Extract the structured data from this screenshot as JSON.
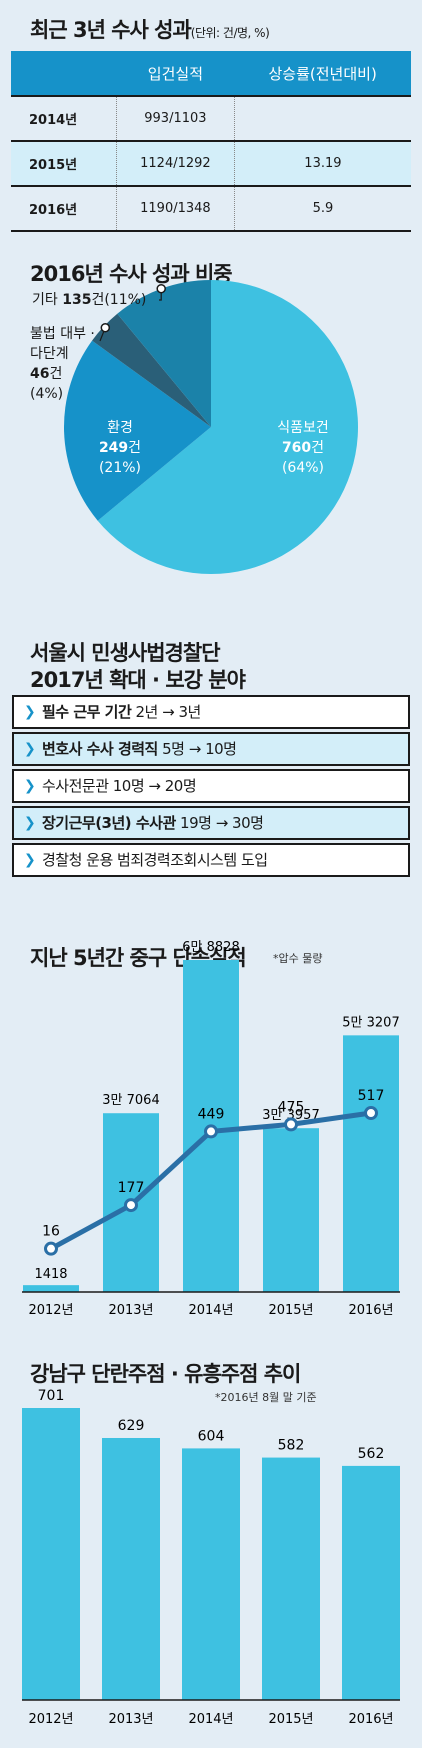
{
  "table_section": {
    "title": "최근 3년 수사 성과",
    "unit": "(단위: 건/명, %)",
    "headers": [
      "",
      "입건실적",
      "상승률(전년대비)"
    ],
    "rows": [
      {
        "year": "2014년",
        "cases": "993/1103",
        "rate": ""
      },
      {
        "year": "2015년",
        "cases": "1124/1292",
        "rate": "13.19"
      },
      {
        "year": "2016년",
        "cases": "1190/1348",
        "rate": "5.9"
      }
    ]
  },
  "pie_section": {
    "title": "2016년 수사 성과 비중",
    "labels": {
      "other": {
        "name": "기타",
        "count": "135",
        "unit": "건",
        "pct": "(11%)"
      },
      "lending_a": "불법 대부 ·",
      "lending_b": "다단계",
      "lending_count": "46",
      "lending_unit": "건",
      "lending_pct": "(4%)",
      "env_name": "환경",
      "env_count": "249",
      "env_unit": "건",
      "env_pct": "(21%)",
      "food_name": "식품보건",
      "food_count": "760",
      "food_unit": "건",
      "food_pct": "(64%)"
    },
    "colors": {
      "food": "#3ec1e1",
      "env": "#1692c9",
      "lending": "#2a5f78",
      "other": "#1b82a9"
    }
  },
  "list_section": {
    "title_line1": "서울시 민생사법경찰단",
    "title_line2": "2017년 확대 · 보강 분야",
    "items": [
      {
        "bold": "필수 근무 기간",
        "rest": " 2년 → 3년",
        "hl": false
      },
      {
        "bold": "변호사 수사 경력직",
        "rest": " 5명 → 10명",
        "hl": true
      },
      {
        "bold": "",
        "rest": "수사전문관 10명 → 20명",
        "hl": false
      },
      {
        "bold": "장기근무(3년) 수사관",
        "rest": " 19명 → 30명",
        "hl": true
      },
      {
        "bold": "",
        "rest": "경찰청 운용 범죄경력조회시스템 도입",
        "hl": false
      }
    ]
  },
  "chart_data": [
    {
      "type": "bar",
      "title": "지난 5년간 중구 단속실적",
      "note": "*압수 물량",
      "categories": [
        "2012년",
        "2013년",
        "2014년",
        "2015년",
        "2016년"
      ],
      "series": [
        {
          "values": [
            1418,
            37064,
            68828,
            33957,
            53207
          ],
          "labels": [
            "1418",
            "3만 7064",
            "6만 8828",
            "3만 3957",
            "5만 3207"
          ]
        },
        {
          "values": [
            16,
            177,
            449,
            475,
            517
          ],
          "labels": [
            "16",
            "177",
            "449",
            "475",
            "517"
          ]
        }
      ],
      "colors": {
        "bar": "#3ec1e1",
        "line": "#2a6fa6"
      }
    },
    {
      "type": "bar",
      "title": "강남구 단란주점 · 유흥주점 추이",
      "note": "*2016년 8월 말 기준",
      "categories": [
        "2012년",
        "2013년",
        "2014년",
        "2015년",
        "2016년"
      ],
      "values": [
        701,
        629,
        604,
        582,
        562
      ],
      "colors": {
        "bar": "#3ec1e1"
      }
    }
  ]
}
